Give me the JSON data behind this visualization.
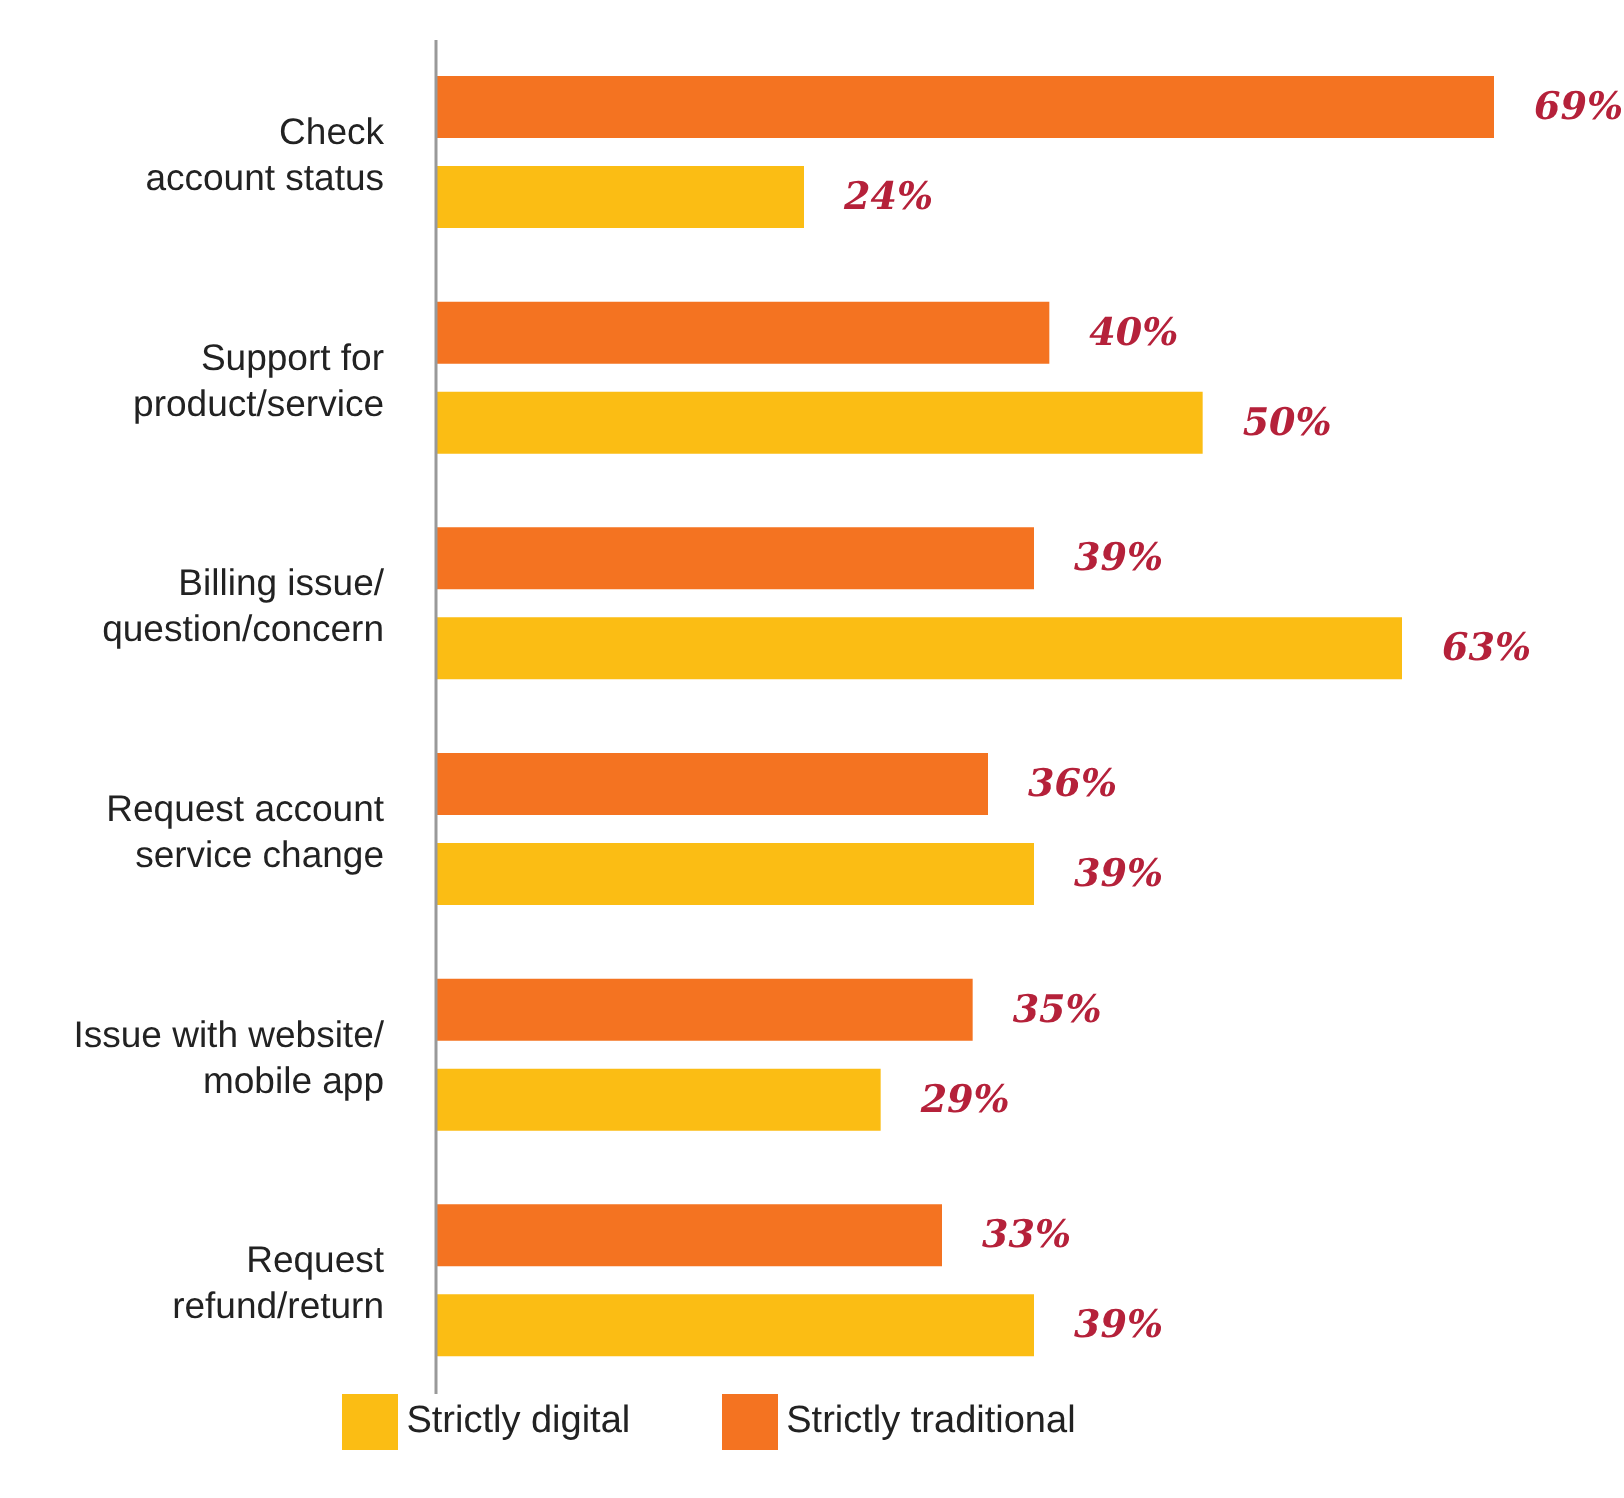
{
  "chart_data": {
    "type": "bar",
    "orientation": "horizontal",
    "categories": [
      "Check\naccount status",
      "Support for\nproduct/service",
      "Billing issue/\nquestion/concern",
      "Request account\nservice change",
      "Issue with website/\nmobile app",
      "Request\nrefund/return"
    ],
    "series": [
      {
        "name": "Strictly traditional",
        "color": "#f47321",
        "values": [
          69,
          40,
          39,
          36,
          35,
          33
        ],
        "value_labels": [
          "69%",
          "40%",
          "39%",
          "36%",
          "35%",
          "33%"
        ]
      },
      {
        "name": "Strictly digital",
        "color": "#fbbd14",
        "values": [
          24,
          50,
          63,
          39,
          29,
          39
        ],
        "value_labels": [
          "24%",
          "50%",
          "63%",
          "39%",
          "29%",
          "39%"
        ]
      }
    ],
    "legend": "bottom",
    "grid": false
  }
}
